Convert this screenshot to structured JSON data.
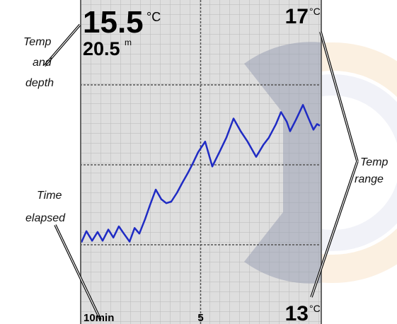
{
  "callouts": {
    "temp_and_depth": [
      "Temp",
      "and",
      "depth"
    ],
    "time_elapsed": [
      "Time",
      "elapsed"
    ],
    "temp_range": [
      "Temp",
      "range"
    ]
  },
  "readout": {
    "temperature": 15.5,
    "temperature_unit": "°C",
    "depth": 20.5,
    "depth_unit": "m"
  },
  "chart_data": {
    "type": "line",
    "x": [
      10.0,
      9.79,
      9.55,
      9.32,
      9.11,
      8.87,
      8.66,
      8.43,
      8.22,
      7.98,
      7.77,
      7.57,
      7.33,
      7.12,
      6.88,
      6.65,
      6.44,
      6.23,
      5.99,
      5.76,
      5.55,
      5.34,
      5.1,
      4.81,
      4.51,
      4.21,
      3.92,
      3.62,
      3.32,
      3.03,
      2.67,
      2.37,
      2.14,
      1.84,
      1.63,
      1.39,
      1.25,
      1.01,
      0.71,
      0.5,
      0.27,
      0.12,
      0.0
    ],
    "values": [
      14.03,
      14.17,
      14.05,
      14.16,
      14.05,
      14.19,
      14.09,
      14.23,
      14.14,
      14.04,
      14.21,
      14.14,
      14.32,
      14.5,
      14.69,
      14.57,
      14.52,
      14.54,
      14.65,
      14.78,
      14.89,
      15.01,
      15.16,
      15.29,
      14.98,
      15.16,
      15.34,
      15.58,
      15.42,
      15.29,
      15.1,
      15.25,
      15.34,
      15.51,
      15.66,
      15.54,
      15.42,
      15.56,
      15.75,
      15.6,
      15.44,
      15.51,
      15.49
    ],
    "color": "#1f2bc4",
    "xlim": [
      10,
      0
    ],
    "xticks": [
      {
        "value": 10,
        "label": "10min"
      },
      5
    ],
    "ylim": [
      13,
      17
    ],
    "yticks": [
      13,
      17
    ],
    "ygrid": [
      14,
      15,
      16
    ],
    "y_unit": "°C",
    "grid": true
  }
}
